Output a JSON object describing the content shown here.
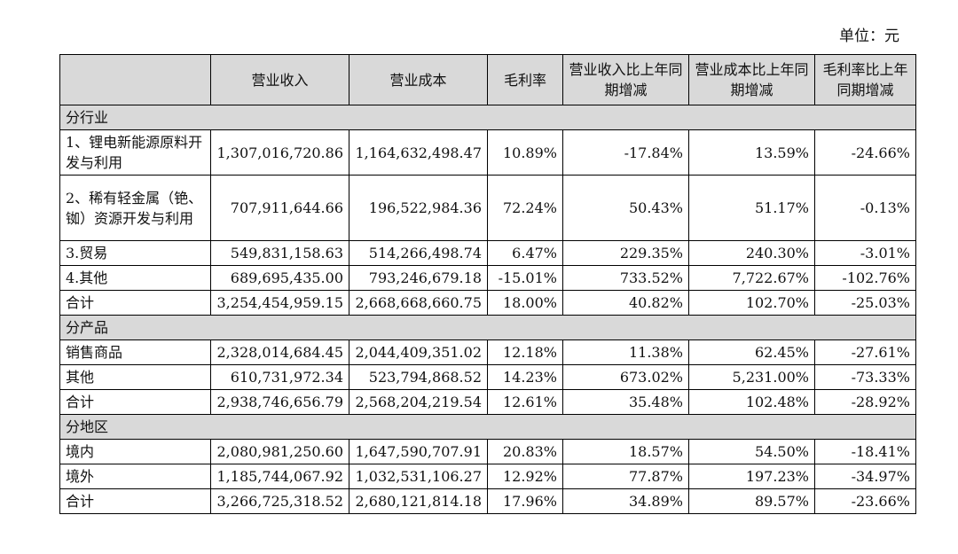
{
  "unit_label": "单位：元",
  "headers": [
    "",
    "营业收入",
    "营业成本",
    "毛利率",
    "营业收入比上年同期增减",
    "营业成本比上年同期增减",
    "毛利率比上年同期增减"
  ],
  "sections": [
    {
      "title": "分行业",
      "rows": [
        {
          "name": "1、锂电新能源原料开发与利用",
          "cells": [
            "1,307,016,720.86",
            "1,164,632,498.47",
            "10.89%",
            "-17.84%",
            "13.59%",
            "-24.66%"
          ]
        },
        {
          "name": "2、稀有轻金属（铯、铷）资源开发与利用",
          "cells": [
            "707,911,644.66",
            "196,522,984.36",
            "72.24%",
            "50.43%",
            "51.17%",
            "-0.13%"
          ]
        },
        {
          "name": "3.贸易",
          "cells": [
            "549,831,158.63",
            "514,266,498.74",
            "6.47%",
            "229.35%",
            "240.30%",
            "-3.01%"
          ]
        },
        {
          "name": "4.其他",
          "cells": [
            "689,695,435.00",
            "793,246,679.18",
            "-15.01%",
            "733.52%",
            "7,722.67%",
            "-102.76%"
          ]
        },
        {
          "name": "合计",
          "cells": [
            "3,254,454,959.15",
            "2,668,668,660.75",
            "18.00%",
            "40.82%",
            "102.70%",
            "-25.03%"
          ]
        }
      ]
    },
    {
      "title": "分产品",
      "rows": [
        {
          "name": "销售商品",
          "cells": [
            "2,328,014,684.45",
            "2,044,409,351.02",
            "12.18%",
            "11.38%",
            "62.45%",
            "-27.61%"
          ]
        },
        {
          "name": "其他",
          "cells": [
            "610,731,972.34",
            "523,794,868.52",
            "14.23%",
            "673.02%",
            "5,231.00%",
            "-73.33%"
          ]
        },
        {
          "name": "合计",
          "cells": [
            "2,938,746,656.79",
            "2,568,204,219.54",
            "12.61%",
            "35.48%",
            "102.48%",
            "-28.92%"
          ]
        }
      ]
    },
    {
      "title": "分地区",
      "rows": [
        {
          "name": "境内",
          "cells": [
            "2,080,981,250.60",
            "1,647,590,707.91",
            "20.83%",
            "18.57%",
            "54.50%",
            "-18.41%"
          ]
        },
        {
          "name": "境外",
          "cells": [
            "1,185,744,067.92",
            "1,032,531,106.27",
            "12.92%",
            "77.87%",
            "197.23%",
            "-34.97%"
          ]
        },
        {
          "name": "合计",
          "cells": [
            "3,266,725,318.52",
            "2,680,121,814.18",
            "17.96%",
            "34.89%",
            "89.57%",
            "-23.66%"
          ]
        }
      ]
    }
  ]
}
